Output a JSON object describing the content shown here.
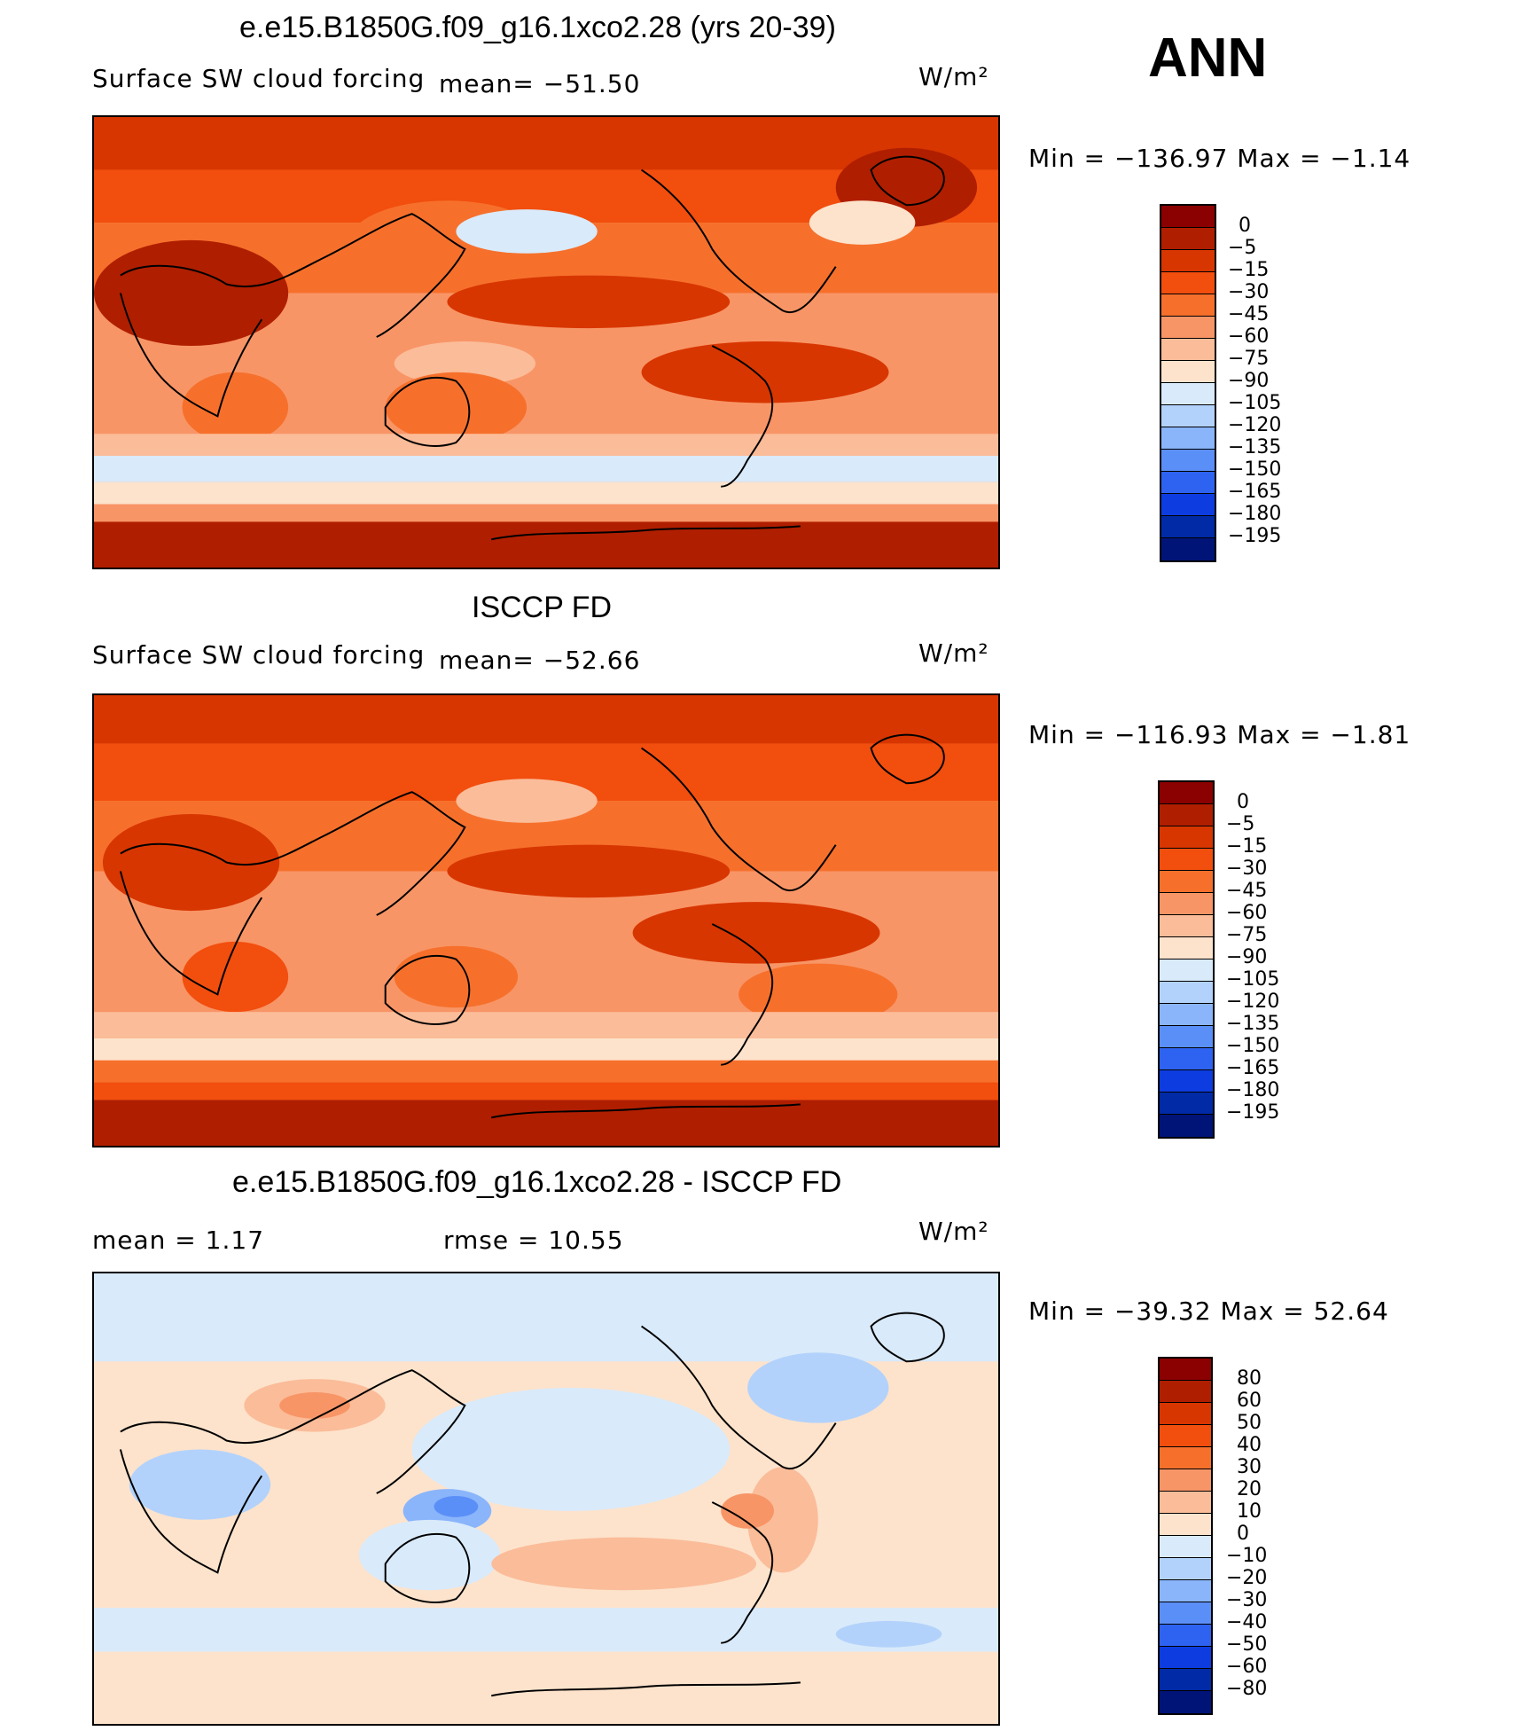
{
  "panels": [
    {
      "title": "e.e15.B1850G.f09_g16.1xco2.28 (yrs 20-39)",
      "variable": "Surface SW cloud forcing",
      "mean_text": "mean= −51.50",
      "units": "W/m²",
      "minmax": "Min = −136.97  Max =  −1.14",
      "colorbar_labels": [
        "0",
        "−5",
        "−15",
        "−30",
        "−45",
        "−60",
        "−75",
        "−90",
        "−105",
        "−120",
        "−135",
        "−150",
        "−165",
        "−180",
        "−195"
      ]
    },
    {
      "title": "ISCCP FD",
      "variable": "Surface SW cloud forcing",
      "mean_text": "mean= −52.66",
      "units": "W/m²",
      "minmax": "Min = −116.93  Max =  −1.81",
      "colorbar_labels": [
        "0",
        "−5",
        "−15",
        "−30",
        "−45",
        "−60",
        "−75",
        "−90",
        "−105",
        "−120",
        "−135",
        "−150",
        "−165",
        "−180",
        "−195"
      ]
    },
    {
      "title": "e.e15.B1850G.f09_g16.1xco2.28 - ISCCP FD",
      "mean_text": "mean =    1.17",
      "rmse_text": "rmse =   10.55",
      "units": "W/m²",
      "minmax": "Min = −39.32  Max =  52.64",
      "colorbar_labels": [
        "80",
        "60",
        "50",
        "40",
        "30",
        "20",
        "10",
        "0",
        "−10",
        "−20",
        "−30",
        "−40",
        "−50",
        "−60",
        "−80"
      ]
    }
  ],
  "season_label": "ANN",
  "colors": {
    "colorbar_top_to_bottom": [
      "#8b0000",
      "#b01e00",
      "#d83600",
      "#f24e0e",
      "#f6702c",
      "#f89566",
      "#fbbc99",
      "#fde3cc",
      "#d9eafa",
      "#b3d2fb",
      "#8ab5fb",
      "#5b8ff8",
      "#2e63f2",
      "#0d3de0",
      "#002aa6",
      "#001478"
    ]
  }
}
